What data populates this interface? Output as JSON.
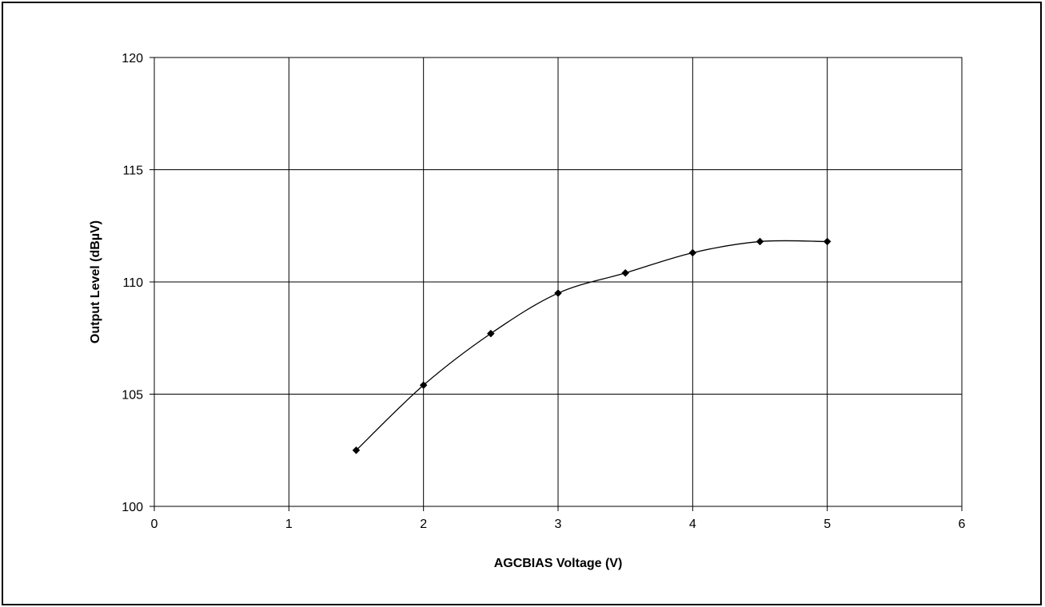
{
  "chart_data": {
    "type": "line",
    "title": "",
    "xlabel": "AGCBIAS Voltage (V)",
    "ylabel": "Output Level (dBµV)",
    "xlim": [
      0,
      6
    ],
    "ylim": [
      100,
      120
    ],
    "x_ticks": [
      "0",
      "1",
      "2",
      "3",
      "4",
      "5",
      "6"
    ],
    "y_ticks": [
      "100",
      "105",
      "110",
      "115",
      "120"
    ],
    "grid": true,
    "marker": "diamond",
    "smooth": true,
    "line_color": "#000000",
    "series": [
      {
        "x": [
          1.5,
          2.0,
          2.5,
          3.0,
          3.5,
          4.0,
          4.5,
          5.0
        ],
        "y": [
          102.5,
          105.4,
          107.7,
          109.5,
          110.4,
          111.3,
          111.8,
          111.8
        ]
      }
    ]
  }
}
